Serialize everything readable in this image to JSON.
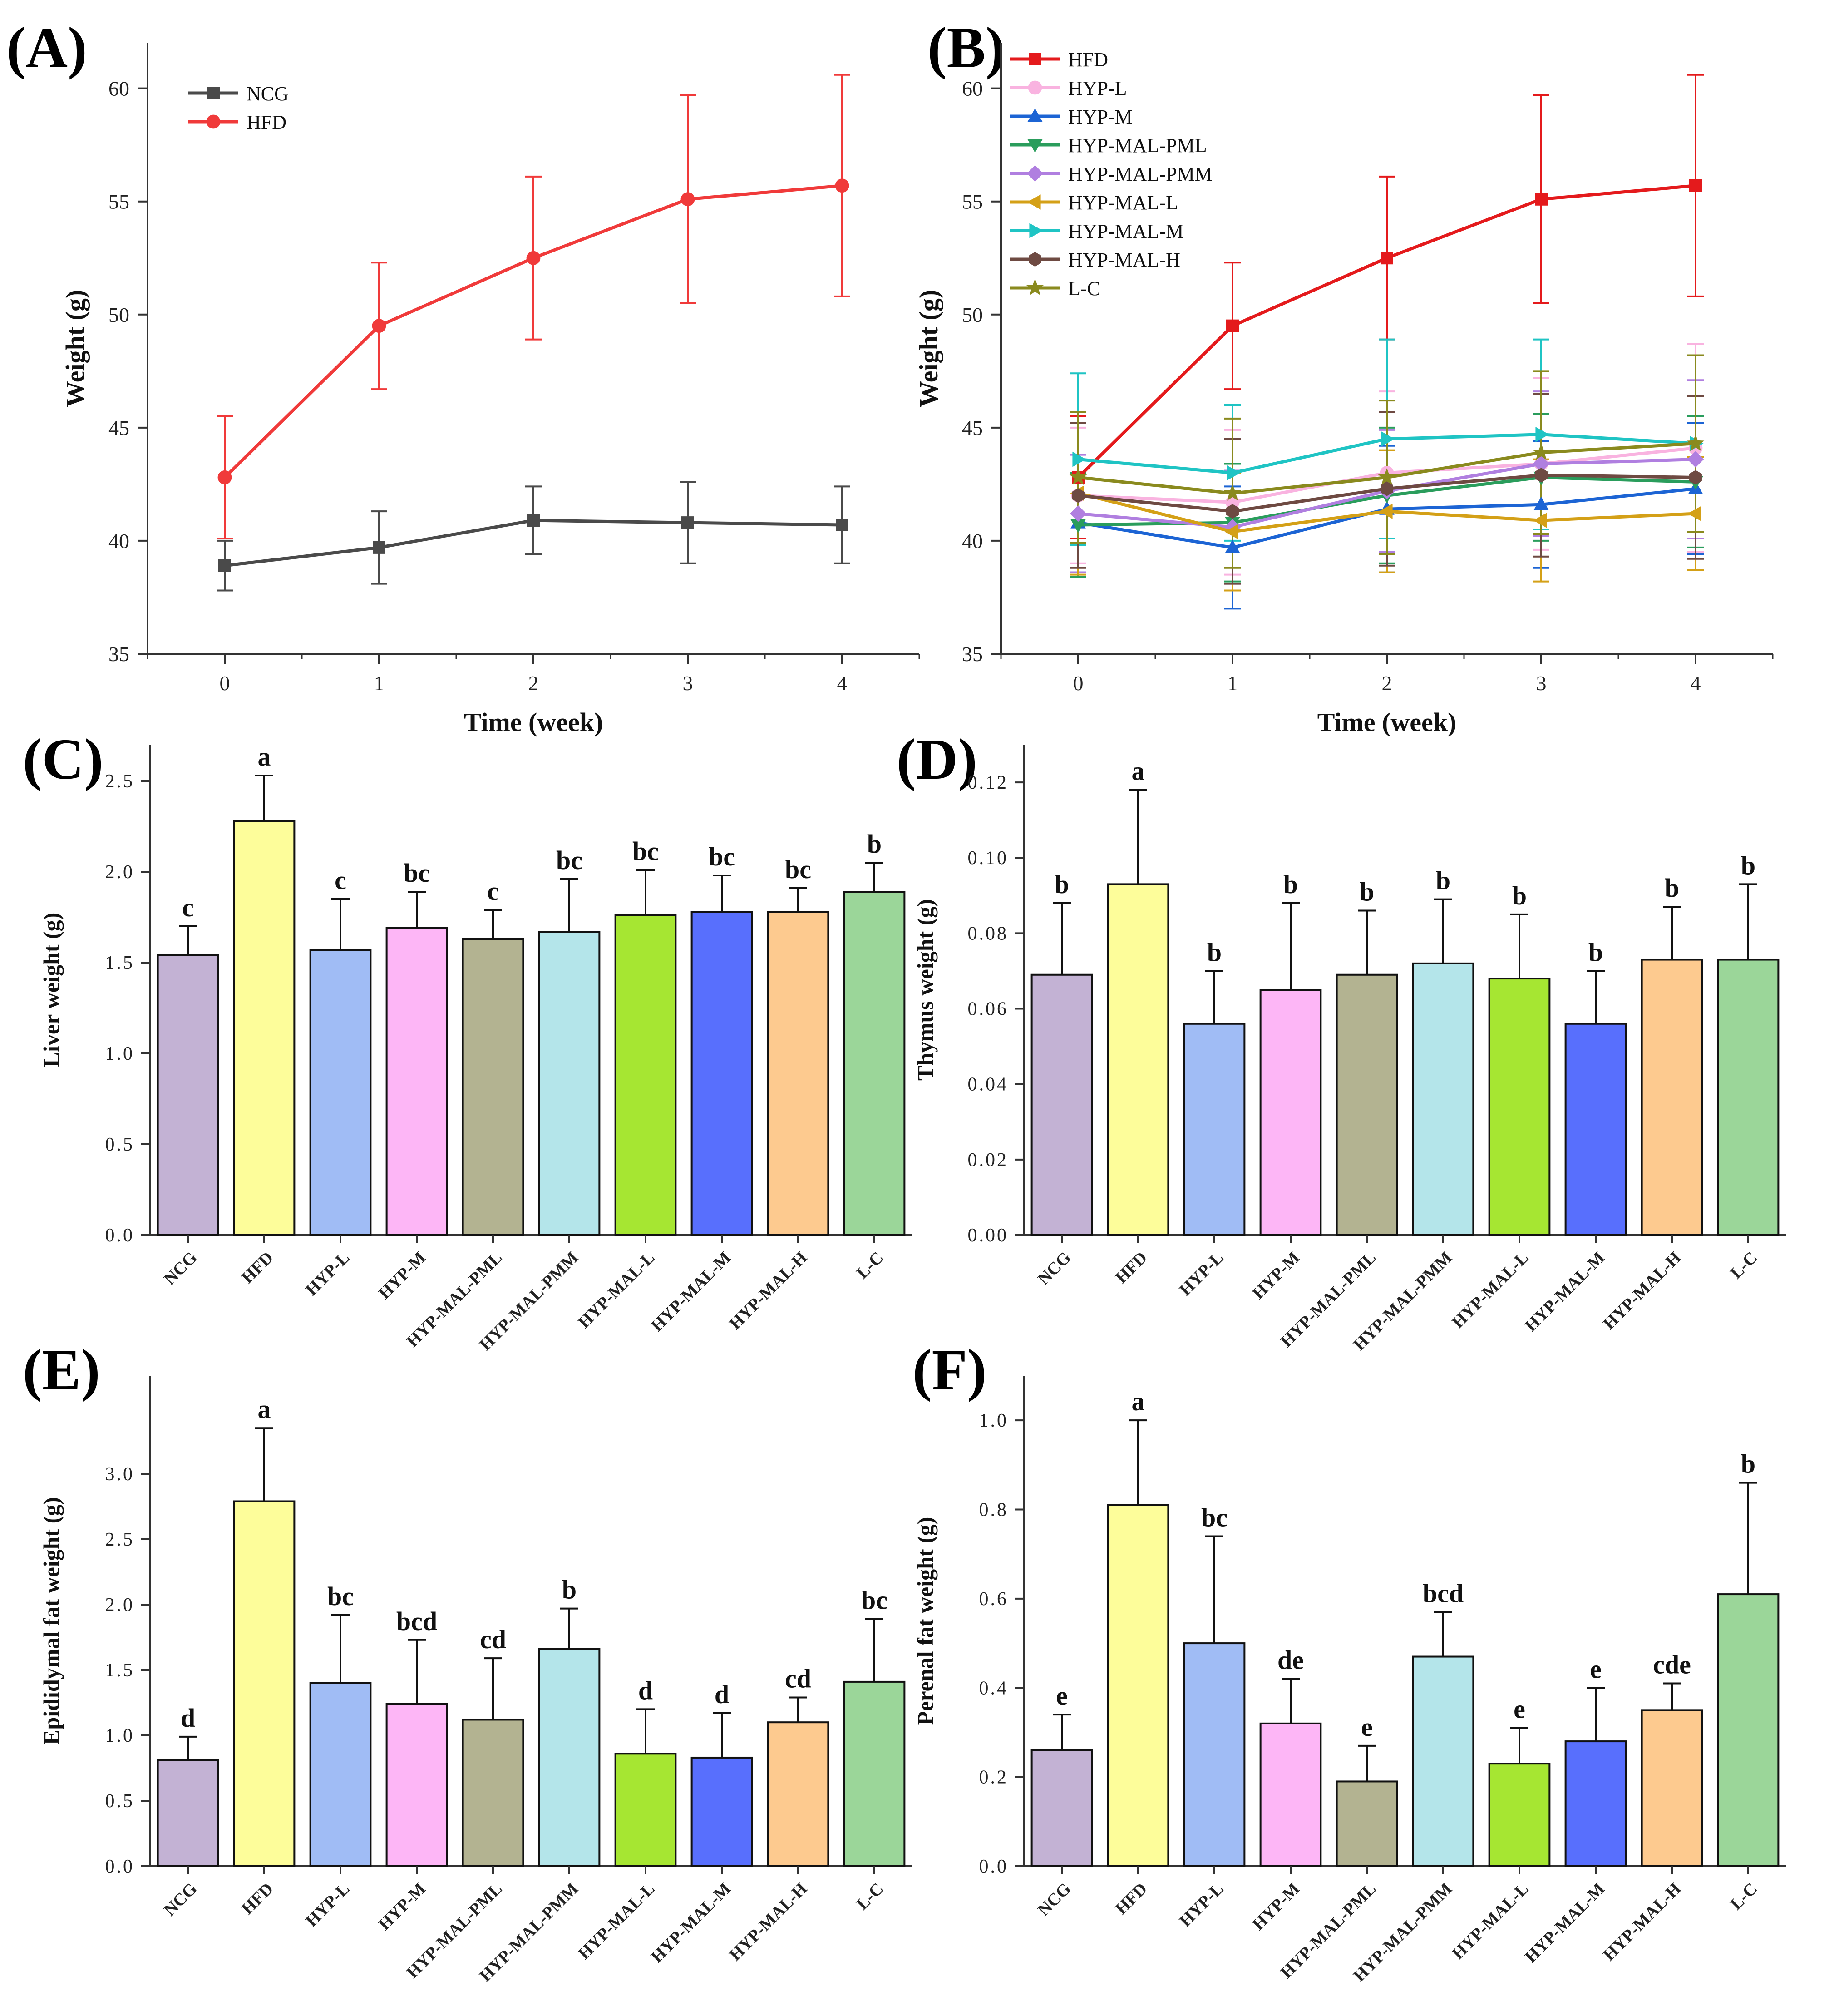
{
  "groups": [
    "NCG",
    "HFD",
    "HYP-L",
    "HYP-M",
    "HYP-MAL-PML",
    "HYP-MAL-PMM",
    "HYP-MAL-L",
    "HYP-MAL-M",
    "HYP-MAL-H",
    "L-C"
  ],
  "bar_colors": [
    "#c3b2d4",
    "#fdfd9a",
    "#a0bcf5",
    "#fdb6f6",
    "#b3b391",
    "#b4e5ea",
    "#a6e632",
    "#586ffd",
    "#fdca8f",
    "#9bd699"
  ],
  "chart_data": [
    {
      "id": "A",
      "type": "line",
      "letter": "(A)",
      "xlabel": "Time (week)",
      "ylabel": "Weight (g)",
      "x": [
        0,
        1,
        2,
        3,
        4
      ],
      "xticks": [
        "0",
        "1",
        "2",
        "3",
        "4"
      ],
      "ylim": [
        35,
        62
      ],
      "yticks": [
        35,
        40,
        45,
        50,
        55,
        60
      ],
      "legend_position": "top-left",
      "series": [
        {
          "name": "NCG",
          "color": "#4a4a4a",
          "marker": "square",
          "values": [
            38.9,
            39.7,
            40.9,
            40.8,
            40.7
          ],
          "errors": [
            1.1,
            1.6,
            1.5,
            1.8,
            1.7
          ]
        },
        {
          "name": "HFD",
          "color": "#f03a3a",
          "marker": "circle",
          "values": [
            42.8,
            49.5,
            52.5,
            55.1,
            55.7
          ],
          "errors": [
            2.7,
            2.8,
            3.6,
            4.6,
            4.9
          ]
        }
      ]
    },
    {
      "id": "B",
      "type": "line",
      "letter": "(B)",
      "xlabel": "Time (week)",
      "ylabel": "Weight (g)",
      "x": [
        0,
        1,
        2,
        3,
        4
      ],
      "xticks": [
        "0",
        "1",
        "2",
        "3",
        "4"
      ],
      "ylim": [
        35,
        62
      ],
      "yticks": [
        35,
        40,
        45,
        50,
        55,
        60
      ],
      "legend_position": "top-left",
      "series": [
        {
          "name": "HFD",
          "color": "#e41a1c",
          "marker": "square",
          "values": [
            42.8,
            49.5,
            52.5,
            55.1,
            55.7
          ],
          "errors": [
            2.7,
            2.8,
            3.6,
            4.6,
            4.9
          ]
        },
        {
          "name": "HYP-L",
          "color": "#f9b3e0",
          "marker": "circle",
          "values": [
            42.0,
            41.7,
            43.0,
            43.4,
            44.1
          ],
          "errors": [
            3.0,
            3.2,
            3.6,
            3.8,
            4.6
          ]
        },
        {
          "name": "HYP-M",
          "color": "#1c64d4",
          "marker": "triangle-up",
          "values": [
            40.8,
            39.7,
            41.4,
            41.6,
            42.3
          ],
          "errors": [
            2.2,
            2.7,
            2.8,
            2.8,
            2.9
          ]
        },
        {
          "name": "HYP-MAL-PML",
          "color": "#2a9d5c",
          "marker": "triangle-down",
          "values": [
            40.7,
            40.8,
            42.0,
            42.8,
            42.6
          ],
          "errors": [
            2.3,
            2.6,
            3.0,
            2.8,
            2.9
          ]
        },
        {
          "name": "HYP-MAL-PMM",
          "color": "#b07fe0",
          "marker": "diamond",
          "values": [
            41.2,
            40.6,
            42.2,
            43.4,
            43.6
          ],
          "errors": [
            2.6,
            2.5,
            2.7,
            3.2,
            3.5
          ]
        },
        {
          "name": "HYP-MAL-L",
          "color": "#d4a017",
          "marker": "triangle-left",
          "values": [
            42.1,
            40.4,
            41.3,
            40.9,
            41.2
          ],
          "errors": [
            3.6,
            2.6,
            2.7,
            2.7,
            2.5
          ]
        },
        {
          "name": "HYP-MAL-M",
          "color": "#1fc4c4",
          "marker": "triangle-right",
          "values": [
            43.6,
            43.0,
            44.5,
            44.7,
            44.3
          ],
          "errors": [
            3.8,
            3.0,
            4.4,
            4.2,
            3.9
          ]
        },
        {
          "name": "HYP-MAL-H",
          "color": "#6e4a42",
          "marker": "hexagon",
          "values": [
            42.0,
            41.3,
            42.3,
            42.9,
            42.8
          ],
          "errors": [
            3.2,
            3.2,
            3.4,
            3.6,
            3.6
          ]
        },
        {
          "name": "L-C",
          "color": "#8a8a1e",
          "marker": "star",
          "values": [
            42.8,
            42.1,
            42.8,
            43.9,
            44.3
          ],
          "errors": [
            2.9,
            3.3,
            3.4,
            3.6,
            3.9
          ]
        }
      ]
    },
    {
      "id": "C",
      "type": "bar",
      "letter": "(C)",
      "ylabel": "Liver weight (g)",
      "ylim": [
        0,
        2.7
      ],
      "yticks": [
        "0.0",
        "0.5",
        "1.0",
        "1.5",
        "2.0",
        "2.5"
      ],
      "values": [
        1.54,
        2.28,
        1.57,
        1.69,
        1.63,
        1.67,
        1.76,
        1.78,
        1.78,
        1.89
      ],
      "errors": [
        0.16,
        0.25,
        0.28,
        0.2,
        0.16,
        0.29,
        0.25,
        0.2,
        0.13,
        0.16
      ],
      "labels": [
        "c",
        "a",
        "c",
        "bc",
        "c",
        "bc",
        "bc",
        "bc",
        "bc",
        "b"
      ]
    },
    {
      "id": "D",
      "type": "bar",
      "letter": "(D)",
      "ylabel": "Thymus weight (g)",
      "ylim": [
        0,
        0.13
      ],
      "yticks": [
        "0.00",
        "0.02",
        "0.04",
        "0.06",
        "0.08",
        "0.10",
        "0.12"
      ],
      "values": [
        0.069,
        0.093,
        0.056,
        0.065,
        0.069,
        0.072,
        0.068,
        0.056,
        0.073,
        0.073
      ],
      "errors": [
        0.019,
        0.025,
        0.014,
        0.023,
        0.017,
        0.017,
        0.017,
        0.014,
        0.014,
        0.02
      ],
      "labels": [
        "b",
        "a",
        "b",
        "b",
        "b",
        "b",
        "b",
        "b",
        "b",
        "b"
      ]
    },
    {
      "id": "E",
      "type": "bar",
      "letter": "(E)",
      "ylabel": "Epididymal fat weight (g)",
      "ylim": [
        0,
        3.75
      ],
      "yticks": [
        "0.0",
        "0.5",
        "1.0",
        "1.5",
        "2.0",
        "2.5",
        "3.0"
      ],
      "values": [
        0.81,
        2.79,
        1.4,
        1.24,
        1.12,
        1.66,
        0.86,
        0.83,
        1.1,
        1.41
      ],
      "errors": [
        0.18,
        0.56,
        0.52,
        0.49,
        0.47,
        0.31,
        0.34,
        0.34,
        0.19,
        0.48
      ],
      "labels": [
        "d",
        "a",
        "bc",
        "bcd",
        "cd",
        "b",
        "d",
        "d",
        "cd",
        "bc"
      ]
    },
    {
      "id": "F",
      "type": "bar",
      "letter": "(F)",
      "ylabel": "Perenal fat weight (g)",
      "ylim": [
        0,
        1.1
      ],
      "yticks": [
        "0.0",
        "0.2",
        "0.4",
        "0.6",
        "0.8",
        "1.0"
      ],
      "values": [
        0.26,
        0.81,
        0.5,
        0.32,
        0.19,
        0.47,
        0.23,
        0.28,
        0.35,
        0.61
      ],
      "errors": [
        0.08,
        0.19,
        0.24,
        0.1,
        0.08,
        0.1,
        0.08,
        0.12,
        0.06,
        0.25
      ],
      "labels": [
        "e",
        "a",
        "bc",
        "de",
        "e",
        "bcd",
        "e",
        "e",
        "cde",
        "b"
      ]
    }
  ]
}
